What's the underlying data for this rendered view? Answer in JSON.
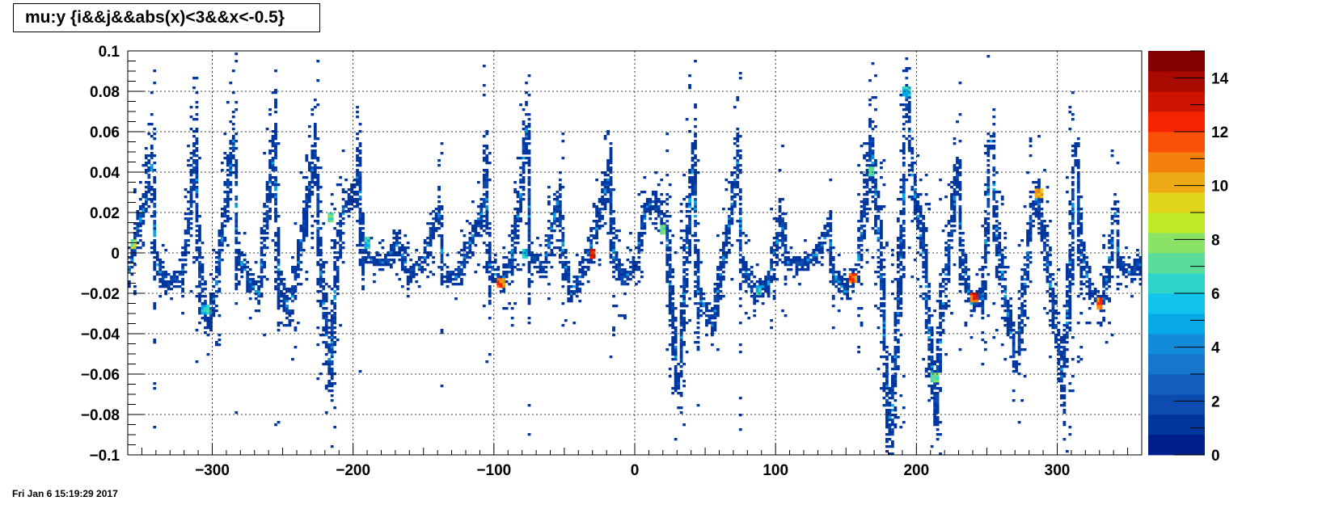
{
  "title": "mu:y {i&&j&&abs(x)<3&&x<-0.5}",
  "timestamp": "Fri Jan  6 15:19:29 2017",
  "chart_data": {
    "type": "heatmap",
    "title": "mu:y {i&&j&&abs(x)<3&&x<-0.5}",
    "xlabel": "",
    "ylabel": "",
    "xlim": [
      -360,
      360
    ],
    "ylim": [
      -0.1,
      0.1
    ],
    "grid": true,
    "x_ticks": [
      {
        "value": -300,
        "label": "−300"
      },
      {
        "value": -200,
        "label": "−200"
      },
      {
        "value": -100,
        "label": "−100"
      },
      {
        "value": 0,
        "label": "0"
      },
      {
        "value": 100,
        "label": "100"
      },
      {
        "value": 200,
        "label": "200"
      },
      {
        "value": 300,
        "label": "300"
      }
    ],
    "y_ticks": [
      {
        "value": 0.1,
        "label": "0.1"
      },
      {
        "value": 0.08,
        "label": "0.08"
      },
      {
        "value": 0.06,
        "label": "0.06"
      },
      {
        "value": 0.04,
        "label": "0.04"
      },
      {
        "value": 0.02,
        "label": "0.02"
      },
      {
        "value": 0,
        "label": "0"
      },
      {
        "value": -0.02,
        "label": "−0.02"
      },
      {
        "value": -0.04,
        "label": "−0.04"
      },
      {
        "value": -0.06,
        "label": "−0.06"
      },
      {
        "value": -0.08,
        "label": "−0.08"
      },
      {
        "value": -0.1,
        "label": "−0.1"
      }
    ],
    "zlim": [
      0,
      15
    ],
    "z_ticks": [
      {
        "value": 0,
        "label": "0"
      },
      {
        "value": 2,
        "label": "2"
      },
      {
        "value": 4,
        "label": "4"
      },
      {
        "value": 6,
        "label": "6"
      },
      {
        "value": 8,
        "label": "8"
      },
      {
        "value": 10,
        "label": "10"
      },
      {
        "value": 12,
        "label": "12"
      },
      {
        "value": 14,
        "label": "14"
      }
    ],
    "palette": [
      "#001f8c",
      "#00369e",
      "#0c4cb0",
      "#125fbf",
      "#1576cc",
      "#128cda",
      "#06a8e6",
      "#10c4ee",
      "#2fd4c8",
      "#5cdc9a",
      "#8ae266",
      "#c0ea28",
      "#e0d41c",
      "#eeaa14",
      "#f4800e",
      "#fa5008",
      "#f42400",
      "#cc1400",
      "#a80a00",
      "#850000"
    ],
    "ridge": [
      {
        "x": -360,
        "y": -0.012
      },
      {
        "x": -354,
        "y": 0.008
      },
      {
        "x": -346,
        "y": 0.03
      },
      {
        "x": -343,
        "y": 0.042
      },
      {
        "x": -340,
        "y": -0.005
      },
      {
        "x": -332,
        "y": -0.015
      },
      {
        "x": -322,
        "y": -0.012
      },
      {
        "x": -316,
        "y": 0.02
      },
      {
        "x": -312,
        "y": 0.05
      },
      {
        "x": -309,
        "y": -0.005
      },
      {
        "x": -303,
        "y": -0.035
      },
      {
        "x": -298,
        "y": -0.02
      },
      {
        "x": -291,
        "y": 0.02
      },
      {
        "x": -285,
        "y": 0.055
      },
      {
        "x": -282,
        "y": 0.0
      },
      {
        "x": -273,
        "y": -0.015
      },
      {
        "x": -267,
        "y": -0.02
      },
      {
        "x": -261,
        "y": 0.02
      },
      {
        "x": -256,
        "y": 0.052
      },
      {
        "x": -253,
        "y": -0.01
      },
      {
        "x": -245,
        "y": -0.03
      },
      {
        "x": -238,
        "y": 0.0
      },
      {
        "x": -229,
        "y": 0.04
      },
      {
        "x": -227,
        "y": 0.05
      },
      {
        "x": -224,
        "y": 0.0
      },
      {
        "x": -219,
        "y": -0.04
      },
      {
        "x": -216,
        "y": -0.058
      },
      {
        "x": -212,
        "y": -0.01
      },
      {
        "x": -207,
        "y": 0.02
      },
      {
        "x": -198,
        "y": 0.032
      },
      {
        "x": -196,
        "y": 0.042
      },
      {
        "x": -193,
        "y": 0.0
      },
      {
        "x": -182,
        "y": -0.005
      },
      {
        "x": -175,
        "y": -0.003
      },
      {
        "x": -168,
        "y": 0.005
      },
      {
        "x": -160,
        "y": -0.01
      },
      {
        "x": -150,
        "y": -0.005
      },
      {
        "x": -142,
        "y": 0.015
      },
      {
        "x": -139,
        "y": 0.02
      },
      {
        "x": -136,
        "y": -0.01
      },
      {
        "x": -126,
        "y": -0.012
      },
      {
        "x": -114,
        "y": 0.01
      },
      {
        "x": -108,
        "y": 0.022
      },
      {
        "x": -106,
        "y": 0.04
      },
      {
        "x": -103,
        "y": -0.005
      },
      {
        "x": -95,
        "y": -0.015
      },
      {
        "x": -88,
        "y": -0.005
      },
      {
        "x": -81,
        "y": 0.03
      },
      {
        "x": -77,
        "y": 0.06
      },
      {
        "x": -74,
        "y": 0.0
      },
      {
        "x": -65,
        "y": -0.008
      },
      {
        "x": -58,
        "y": 0.015
      },
      {
        "x": -54,
        "y": 0.028
      },
      {
        "x": -50,
        "y": -0.005
      },
      {
        "x": -45,
        "y": -0.02
      },
      {
        "x": -37,
        "y": -0.01
      },
      {
        "x": -28,
        "y": 0.01
      },
      {
        "x": -21,
        "y": 0.03
      },
      {
        "x": -18,
        "y": 0.04
      },
      {
        "x": -15,
        "y": 0.0
      },
      {
        "x": -8,
        "y": -0.015
      },
      {
        "x": 2,
        "y": 0.0
      },
      {
        "x": 8,
        "y": 0.022
      },
      {
        "x": 14,
        "y": 0.025
      },
      {
        "x": 22,
        "y": 0.015
      },
      {
        "x": 28,
        "y": -0.04
      },
      {
        "x": 31,
        "y": -0.065
      },
      {
        "x": 35,
        "y": -0.02
      },
      {
        "x": 40,
        "y": 0.035
      },
      {
        "x": 42,
        "y": 0.045
      },
      {
        "x": 45,
        "y": -0.02
      },
      {
        "x": 55,
        "y": -0.035
      },
      {
        "x": 66,
        "y": 0.01
      },
      {
        "x": 71,
        "y": 0.035
      },
      {
        "x": 73,
        "y": 0.045
      },
      {
        "x": 76,
        "y": -0.005
      },
      {
        "x": 85,
        "y": -0.02
      },
      {
        "x": 95,
        "y": -0.015
      },
      {
        "x": 102,
        "y": 0.01
      },
      {
        "x": 104,
        "y": 0.018
      },
      {
        "x": 108,
        "y": -0.005
      },
      {
        "x": 120,
        "y": -0.005
      },
      {
        "x": 130,
        "y": 0.0
      },
      {
        "x": 138,
        "y": 0.012
      },
      {
        "x": 141,
        "y": -0.01
      },
      {
        "x": 150,
        "y": -0.02
      },
      {
        "x": 158,
        "y": -0.01
      },
      {
        "x": 165,
        "y": 0.035
      },
      {
        "x": 168,
        "y": 0.055
      },
      {
        "x": 171,
        "y": 0.03
      },
      {
        "x": 176,
        "y": -0.02
      },
      {
        "x": 179,
        "y": -0.07
      },
      {
        "x": 182,
        "y": -0.09
      },
      {
        "x": 186,
        "y": -0.04
      },
      {
        "x": 191,
        "y": 0.03
      },
      {
        "x": 193,
        "y": 0.08
      },
      {
        "x": 197,
        "y": 0.04
      },
      {
        "x": 205,
        "y": 0.0
      },
      {
        "x": 210,
        "y": -0.05
      },
      {
        "x": 214,
        "y": -0.078
      },
      {
        "x": 218,
        "y": -0.03
      },
      {
        "x": 226,
        "y": 0.02
      },
      {
        "x": 229,
        "y": 0.04
      },
      {
        "x": 232,
        "y": 0.0
      },
      {
        "x": 239,
        "y": -0.025
      },
      {
        "x": 247,
        "y": -0.02
      },
      {
        "x": 251,
        "y": 0.03
      },
      {
        "x": 253,
        "y": 0.055
      },
      {
        "x": 257,
        "y": 0.01
      },
      {
        "x": 265,
        "y": -0.03
      },
      {
        "x": 271,
        "y": -0.055
      },
      {
        "x": 276,
        "y": -0.02
      },
      {
        "x": 282,
        "y": 0.02
      },
      {
        "x": 286,
        "y": 0.03
      },
      {
        "x": 292,
        "y": 0.0
      },
      {
        "x": 300,
        "y": -0.04
      },
      {
        "x": 304,
        "y": -0.065
      },
      {
        "x": 308,
        "y": -0.02
      },
      {
        "x": 311,
        "y": 0.02
      },
      {
        "x": 313,
        "y": 0.05
      },
      {
        "x": 317,
        "y": 0.0
      },
      {
        "x": 324,
        "y": -0.02
      },
      {
        "x": 332,
        "y": -0.025
      },
      {
        "x": 338,
        "y": 0.0
      },
      {
        "x": 341,
        "y": 0.02
      },
      {
        "x": 344,
        "y": -0.005
      },
      {
        "x": 352,
        "y": -0.01
      },
      {
        "x": 360,
        "y": -0.005
      }
    ],
    "hot_spots": [
      {
        "x": -356,
        "y": 0.004,
        "z": 9
      },
      {
        "x": -305,
        "y": -0.028,
        "z": 7
      },
      {
        "x": -216,
        "y": 0.018,
        "z": 8
      },
      {
        "x": -190,
        "y": 0.005,
        "z": 7
      },
      {
        "x": -95,
        "y": -0.015,
        "z": 12
      },
      {
        "x": -78,
        "y": 0.0,
        "z": 6
      },
      {
        "x": -30,
        "y": 0.0,
        "z": 13
      },
      {
        "x": 20,
        "y": 0.012,
        "z": 8
      },
      {
        "x": 88,
        "y": -0.018,
        "z": 7
      },
      {
        "x": 155,
        "y": -0.012,
        "z": 12
      },
      {
        "x": 168,
        "y": 0.04,
        "z": 7
      },
      {
        "x": 193,
        "y": 0.08,
        "z": 7
      },
      {
        "x": 213,
        "y": -0.062,
        "z": 8
      },
      {
        "x": 241,
        "y": -0.022,
        "z": 13
      },
      {
        "x": 287,
        "y": 0.03,
        "z": 11
      },
      {
        "x": 330,
        "y": -0.025,
        "z": 12
      }
    ]
  }
}
